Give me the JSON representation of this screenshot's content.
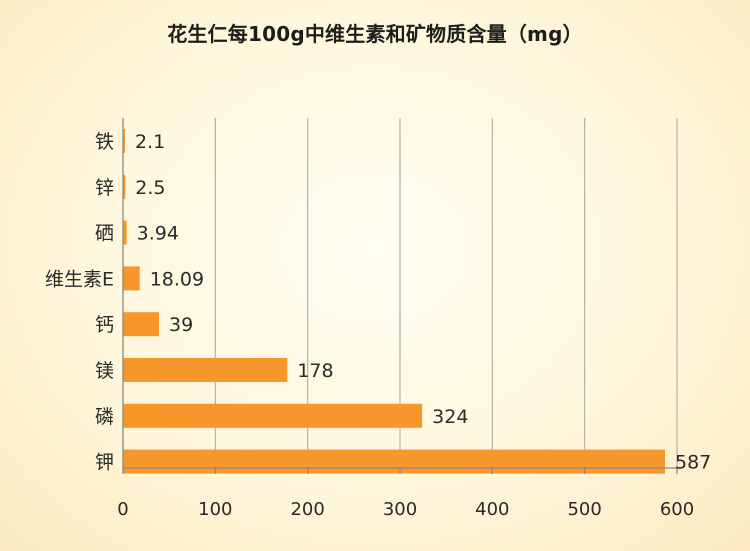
{
  "chart_data": {
    "type": "bar",
    "orientation": "horizontal",
    "title": "花生仁每100g中维生素和矿物质含量（mg）",
    "categories": [
      "铁",
      "锌",
      "硒",
      "维生素E",
      "钙",
      "镁",
      "磷",
      "钾"
    ],
    "values": [
      2.1,
      2.5,
      3.94,
      18.09,
      39,
      178,
      324,
      587
    ],
    "value_labels": [
      "2.1",
      "2.5",
      "3.94",
      "18.09",
      "39",
      "178",
      "324",
      "587"
    ],
    "x_ticks": [
      "0",
      "100",
      "200",
      "300",
      "400",
      "500",
      "600"
    ],
    "xlim": [
      0,
      600
    ],
    "xlabel": "",
    "ylabel": "",
    "grid": "vertical",
    "legend": "none",
    "colors": {
      "bar": "#f7972b",
      "grid": "#b9b2a2",
      "text": "#2a2a2a"
    }
  }
}
